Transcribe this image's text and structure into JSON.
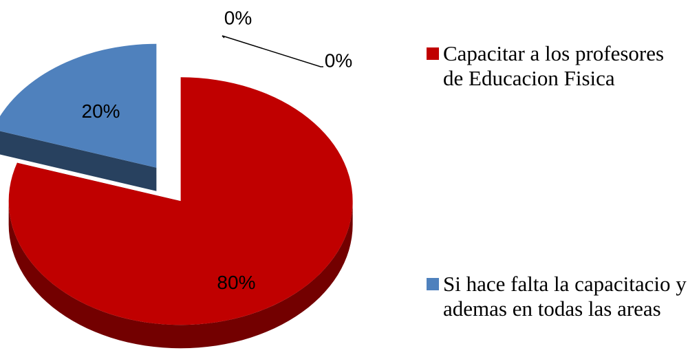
{
  "chart_data": {
    "type": "pie",
    "pie_style": "3d-exploded",
    "categories": [
      "Capacitar a los profesores de Educacion Fisica",
      "Si hace falta la capacitacio y ademas en todas las areas",
      null,
      null
    ],
    "values": [
      80,
      20,
      0,
      0
    ],
    "value_labels": [
      "80%",
      "20%",
      "0%",
      "0%"
    ],
    "colors": [
      "#c00000",
      "#4f81bd",
      "#8064a2",
      "#9bbb59"
    ],
    "legend": "right"
  }
}
